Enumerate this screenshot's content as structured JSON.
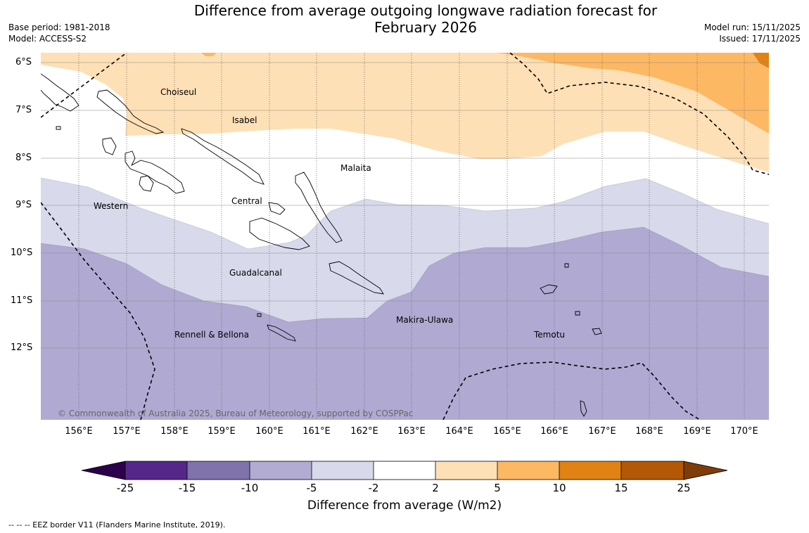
{
  "title_line1": "Difference from average outgoing longwave radiation forecast for",
  "title_line2": "February 2026",
  "base_period": "Base period: 1981-2018",
  "model": "Model: ACCESS-S2",
  "model_run": "Model run: 15/11/2025",
  "issued": "Issued: 17/11/2025",
  "latitudes": [
    "6°S",
    "7°S",
    "8°S",
    "9°S",
    "10°S",
    "11°S",
    "12°S"
  ],
  "longitudes": [
    "156°E",
    "157°E",
    "158°E",
    "159°E",
    "160°E",
    "161°E",
    "162°E",
    "163°E",
    "164°E",
    "165°E",
    "166°E",
    "167°E",
    "168°E",
    "169°E",
    "170°E"
  ],
  "provinces": [
    "Choiseul",
    "Isabel",
    "Malaita",
    "Western",
    "Central",
    "Guadalcanal",
    "Makira-Ulawa",
    "Rennell & Bellona",
    "Temotu"
  ],
  "copyright": "© Commonwealth of Australia 2025, Bureau of Meteorology, supported by COSPPac",
  "colorbar": {
    "ticks": [
      "-25",
      "-15",
      "-10",
      "-5",
      "-2",
      "2",
      "5",
      "10",
      "15",
      "25"
    ],
    "colors": [
      "#2d004b",
      "#542788",
      "#8073ac",
      "#b2abd2",
      "#d8daeb",
      "#ffffff",
      "#fee0b6",
      "#fdb863",
      "#e08214",
      "#b35806",
      "#7f3b08"
    ],
    "label": "Difference from average (W/m2)"
  },
  "footnote": "--  --  -- EEZ border V11 (Flanders Marine Institute, 2019)."
}
